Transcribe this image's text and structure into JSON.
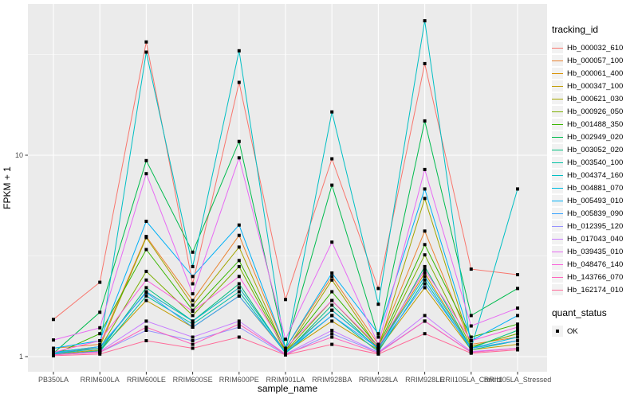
{
  "figure": {
    "x_axis_title": "sample_name",
    "y_axis_title": "FPKM + 1",
    "legend": {
      "tracking_title": "tracking_id",
      "quant_title": "quant_status",
      "quant_label": "OK"
    }
  },
  "chart_data": {
    "type": "line",
    "title": "",
    "xlabel": "sample_name",
    "ylabel": "FPKM + 1",
    "y_scale": "log10",
    "ylim": [
      0.85,
      55
    ],
    "grid": true,
    "legend_position": "right",
    "panel_background": "#EBEBEB",
    "gridline_color": "#FFFFFF",
    "marker": {
      "shape": "square",
      "color": "#000000",
      "meaning": "quant_status OK"
    },
    "y_ticks": [
      {
        "label": "10",
        "value": 10
      },
      {
        "label": "1",
        "value": 1
      }
    ],
    "y_minor": [
      3.1623,
      31.623
    ],
    "categories": [
      "PB350LA",
      "RRIM600LA",
      "RRIM600LE",
      "RRIM600SE",
      "RRIM600PE",
      "RRIM901LA",
      "RRIM928BA",
      "RRIM928LA",
      "RRIM928LE",
      "RRII105LA_Control",
      "RRII105LA_Stressed"
    ],
    "series": [
      {
        "name": "Hb_000032_610",
        "color": "#F8766D",
        "quant_status": "OK",
        "values": [
          1.53,
          2.34,
          36.5,
          2.3,
          23.0,
          1.92,
          9.6,
          2.18,
          28.5,
          2.72,
          2.55
        ]
      },
      {
        "name": "Hb_000057_100",
        "color": "#EA8331",
        "quant_status": "OK",
        "values": [
          1.1,
          1.15,
          3.95,
          1.9,
          4.0,
          1.1,
          2.5,
          1.15,
          4.2,
          1.15,
          1.25
        ]
      },
      {
        "name": "Hb_000061_400",
        "color": "#D89000",
        "quant_status": "OK",
        "values": [
          1.06,
          1.1,
          2.1,
          1.5,
          2.2,
          1.06,
          1.7,
          1.1,
          2.6,
          1.1,
          1.2
        ]
      },
      {
        "name": "Hb_000347_100",
        "color": "#C09B00",
        "quant_status": "OK",
        "values": [
          1.03,
          1.08,
          1.9,
          1.4,
          2.0,
          1.05,
          1.5,
          1.08,
          2.2,
          1.08,
          1.15
        ]
      },
      {
        "name": "Hb_000621_030",
        "color": "#A3A500",
        "quant_status": "OK",
        "values": [
          1.05,
          1.12,
          3.9,
          1.8,
          3.5,
          1.06,
          2.4,
          1.1,
          6.1,
          1.12,
          1.3
        ]
      },
      {
        "name": "Hb_000926_050",
        "color": "#7CAE00",
        "quant_status": "OK",
        "values": [
          1.04,
          1.1,
          2.65,
          1.6,
          2.8,
          1.06,
          1.9,
          1.1,
          3.2,
          1.12,
          1.3
        ]
      },
      {
        "name": "Hb_001488_350",
        "color": "#39B600",
        "quant_status": "OK",
        "values": [
          1.02,
          1.3,
          3.4,
          1.7,
          3.0,
          1.08,
          2.1,
          1.12,
          3.6,
          1.25,
          1.45
        ]
      },
      {
        "name": "Hb_002949_020",
        "color": "#00BB4E",
        "quant_status": "OK",
        "values": [
          1.04,
          1.66,
          9.4,
          3.3,
          11.7,
          1.1,
          7.1,
          1.25,
          14.8,
          1.6,
          2.18
        ]
      },
      {
        "name": "Hb_003052_020",
        "color": "#00BF7D",
        "quant_status": "OK",
        "values": [
          1.02,
          1.07,
          2.2,
          1.5,
          2.3,
          1.04,
          1.8,
          1.08,
          2.8,
          1.1,
          1.35
        ]
      },
      {
        "name": "Hb_003540_100",
        "color": "#00C1A3",
        "quant_status": "OK",
        "values": [
          1.02,
          1.06,
          2.0,
          1.45,
          2.1,
          1.04,
          1.6,
          1.06,
          2.4,
          1.08,
          1.2
        ]
      },
      {
        "name": "Hb_004374_160",
        "color": "#00BFC4",
        "quant_status": "OK",
        "values": [
          1.05,
          1.12,
          32.5,
          2.8,
          33.0,
          1.05,
          16.4,
          1.82,
          46.5,
          1.1,
          6.8
        ]
      },
      {
        "name": "Hb_004881_070",
        "color": "#00BAE0",
        "quant_status": "OK",
        "values": [
          1.03,
          1.1,
          2.1,
          1.5,
          2.2,
          1.05,
          1.7,
          1.1,
          2.5,
          1.1,
          1.25
        ]
      },
      {
        "name": "Hb_005493_010",
        "color": "#00B0F6",
        "quant_status": "OK",
        "values": [
          1.1,
          1.2,
          4.7,
          2.5,
          4.5,
          1.1,
          2.6,
          1.3,
          6.8,
          1.2,
          1.6
        ]
      },
      {
        "name": "Hb_005839_090",
        "color": "#35A2FF",
        "quant_status": "OK",
        "values": [
          1.04,
          1.12,
          2.08,
          1.4,
          2.0,
          1.06,
          1.6,
          1.1,
          2.3,
          1.1,
          1.2
        ]
      },
      {
        "name": "Hb_012395_120",
        "color": "#9590FF",
        "quant_status": "OK",
        "values": [
          1.02,
          1.05,
          1.35,
          1.2,
          1.4,
          1.02,
          1.3,
          1.05,
          1.5,
          1.05,
          1.1
        ]
      },
      {
        "name": "Hb_017043_040",
        "color": "#C77CFF",
        "quant_status": "OK",
        "values": [
          1.02,
          1.06,
          1.5,
          1.25,
          1.5,
          1.03,
          1.35,
          1.05,
          1.6,
          1.06,
          1.1
        ]
      },
      {
        "name": "Hb_039435_010",
        "color": "#E76BF3",
        "quant_status": "OK",
        "values": [
          1.21,
          1.39,
          8.1,
          2.05,
          9.7,
          1.22,
          3.7,
          1.15,
          8.5,
          1.42,
          1.74
        ]
      },
      {
        "name": "Hb_048476_140",
        "color": "#FA62DB",
        "quant_status": "OK",
        "values": [
          1.05,
          1.2,
          2.4,
          1.68,
          2.5,
          1.1,
          1.9,
          1.12,
          2.7,
          1.2,
          1.4
        ]
      },
      {
        "name": "Hb_143766_070",
        "color": "#FF62BC",
        "quant_status": "OK",
        "values": [
          1.02,
          1.05,
          1.4,
          1.15,
          1.45,
          1.03,
          1.25,
          1.04,
          1.5,
          1.05,
          1.1
        ]
      },
      {
        "name": "Hb_162174_010",
        "color": "#FF6A98",
        "quant_status": "OK",
        "values": [
          1.01,
          1.03,
          1.2,
          1.1,
          1.25,
          1.02,
          1.15,
          1.03,
          1.3,
          1.04,
          1.08
        ]
      }
    ]
  }
}
